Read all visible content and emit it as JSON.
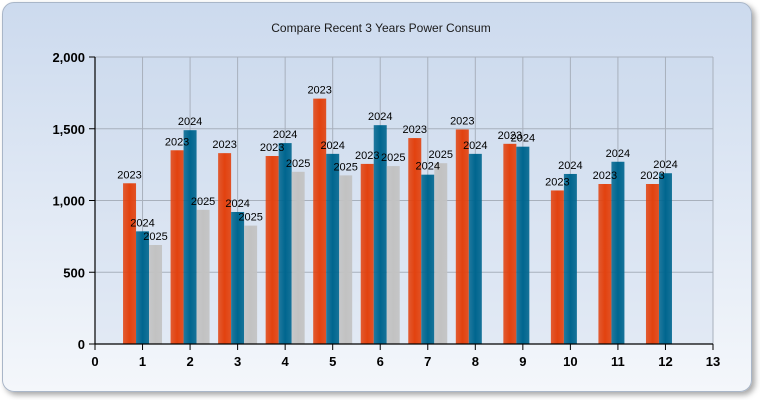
{
  "chart_data": {
    "type": "bar",
    "title": "Compare Recent 3 Years Power Consum",
    "xlabel": "",
    "ylabel": "",
    "categories": [
      1,
      2,
      3,
      4,
      5,
      6,
      7,
      8,
      9,
      10,
      11,
      12
    ],
    "xlim": [
      0,
      13
    ],
    "ylim": [
      0,
      2000
    ],
    "xticks": [
      "0",
      "1",
      "2",
      "3",
      "4",
      "5",
      "6",
      "7",
      "8",
      "9",
      "10",
      "11",
      "12",
      "13"
    ],
    "yticks": [
      "0",
      "500",
      "1,000",
      "1,500",
      "2,000"
    ],
    "grid": true,
    "series": [
      {
        "name": "2023",
        "color": "#e2420f",
        "values": [
          1120,
          1350,
          1330,
          1310,
          1710,
          1255,
          1435,
          1495,
          1395,
          1070,
          1115,
          1115
        ]
      },
      {
        "name": "2024",
        "color": "#00668f",
        "values": [
          785,
          1490,
          920,
          1400,
          1325,
          1525,
          1180,
          1325,
          1375,
          1185,
          1270,
          1190
        ]
      },
      {
        "name": "2025",
        "color": "#c2c2c2",
        "values": [
          690,
          935,
          825,
          1200,
          1175,
          1240,
          1260,
          null,
          null,
          null,
          null,
          null
        ]
      }
    ]
  }
}
